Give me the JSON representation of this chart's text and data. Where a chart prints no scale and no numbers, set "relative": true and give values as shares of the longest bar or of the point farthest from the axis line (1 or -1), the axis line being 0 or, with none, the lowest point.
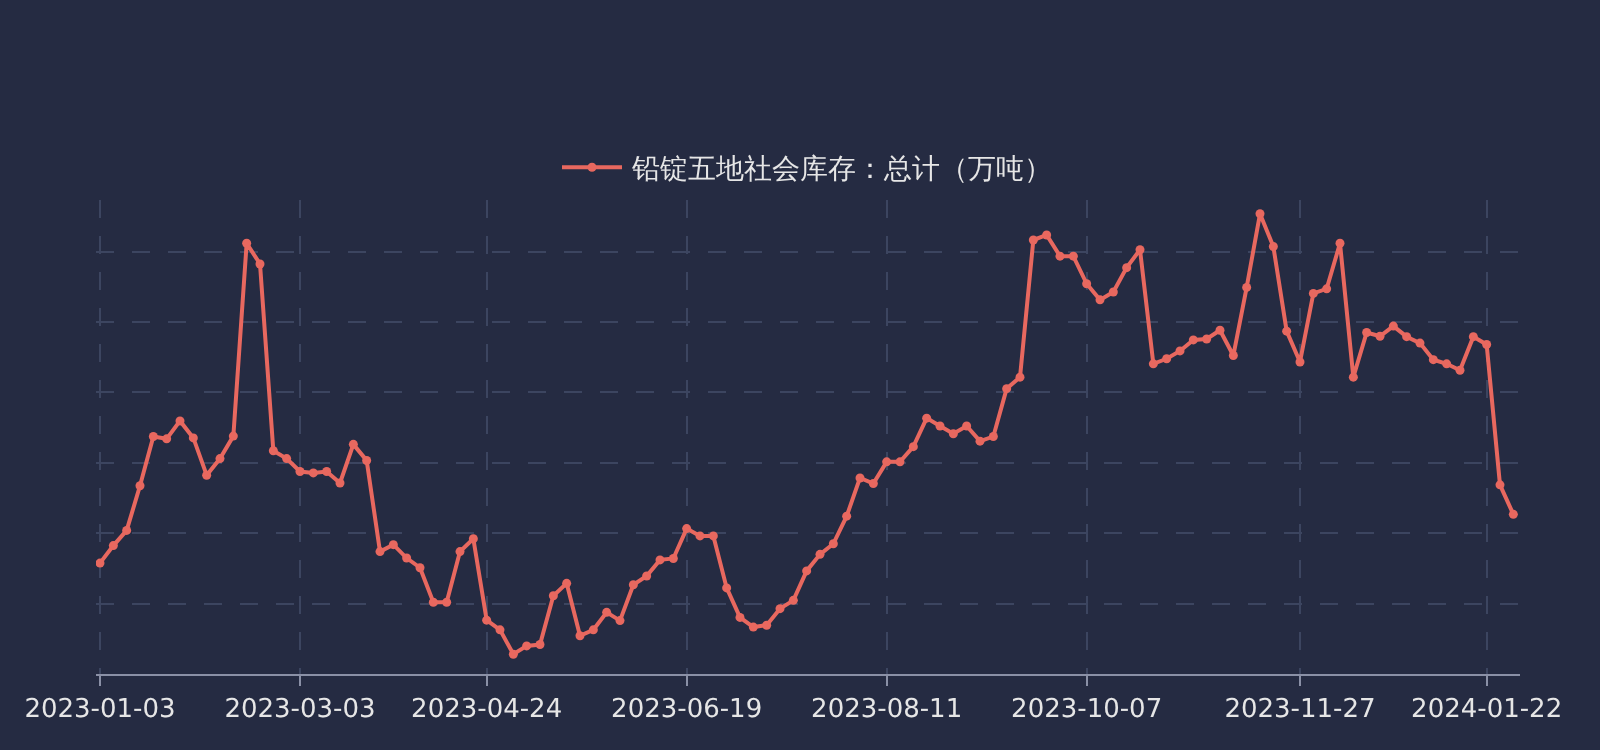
{
  "chart_data": {
    "type": "line",
    "relative": true,
    "grid": true,
    "legend": "top",
    "marker": "circle",
    "line_style": "solid",
    "categories": [
      "2023-01-03",
      null,
      null,
      null,
      null,
      null,
      null,
      null,
      null,
      null,
      null,
      null,
      null,
      null,
      null,
      "2023-03-03",
      null,
      null,
      null,
      null,
      null,
      null,
      null,
      null,
      null,
      null,
      null,
      null,
      null,
      "2023-04-24",
      null,
      null,
      null,
      null,
      null,
      null,
      null,
      null,
      null,
      null,
      null,
      null,
      null,
      null,
      "2023-06-19",
      null,
      null,
      null,
      null,
      null,
      null,
      null,
      null,
      null,
      null,
      null,
      null,
      null,
      null,
      "2023-08-11",
      null,
      null,
      null,
      null,
      null,
      null,
      null,
      null,
      null,
      null,
      null,
      null,
      null,
      null,
      "2023-10-07",
      null,
      null,
      null,
      null,
      null,
      null,
      null,
      null,
      null,
      null,
      null,
      null,
      null,
      null,
      null,
      "2023-11-27",
      null,
      null,
      null,
      null,
      null,
      null,
      null,
      null,
      null,
      null,
      null,
      null,
      null,
      "2024-01-22",
      null,
      null
    ],
    "series": [
      {
        "name": "铅锭五地社会库存：总计（万吨）",
        "color": "#e8685f",
        "values": [
          0.241,
          0.279,
          0.312,
          0.409,
          0.516,
          0.511,
          0.55,
          0.513,
          0.432,
          0.468,
          0.517,
          0.936,
          0.891,
          0.485,
          0.468,
          0.44,
          0.437,
          0.44,
          0.415,
          0.499,
          0.464,
          0.266,
          0.281,
          0.252,
          0.231,
          0.156,
          0.156,
          0.266,
          0.294,
          0.117,
          0.096,
          0.043,
          0.061,
          0.064,
          0.17,
          0.197,
          0.083,
          0.096,
          0.134,
          0.116,
          0.194,
          0.213,
          0.248,
          0.251,
          0.316,
          0.3,
          0.3,
          0.187,
          0.123,
          0.102,
          0.106,
          0.142,
          0.16,
          0.224,
          0.26,
          0.283,
          0.343,
          0.426,
          0.414,
          0.461,
          0.461,
          0.494,
          0.556,
          0.539,
          0.522,
          0.539,
          0.506,
          0.516,
          0.62,
          0.645,
          0.943,
          0.954,
          0.908,
          0.908,
          0.848,
          0.813,
          0.83,
          0.883,
          0.922,
          0.674,
          0.685,
          0.702,
          0.726,
          0.728,
          0.747,
          0.692,
          0.84,
          1,
          0.929,
          0.745,
          0.678,
          0.827,
          0.837,
          0.936,
          0.645,
          0.742,
          0.734,
          0.756,
          0.733,
          0.719,
          0.683,
          0.674,
          0.66,
          0.733,
          0.716,
          0.411,
          0.347
        ]
      }
    ]
  }
}
